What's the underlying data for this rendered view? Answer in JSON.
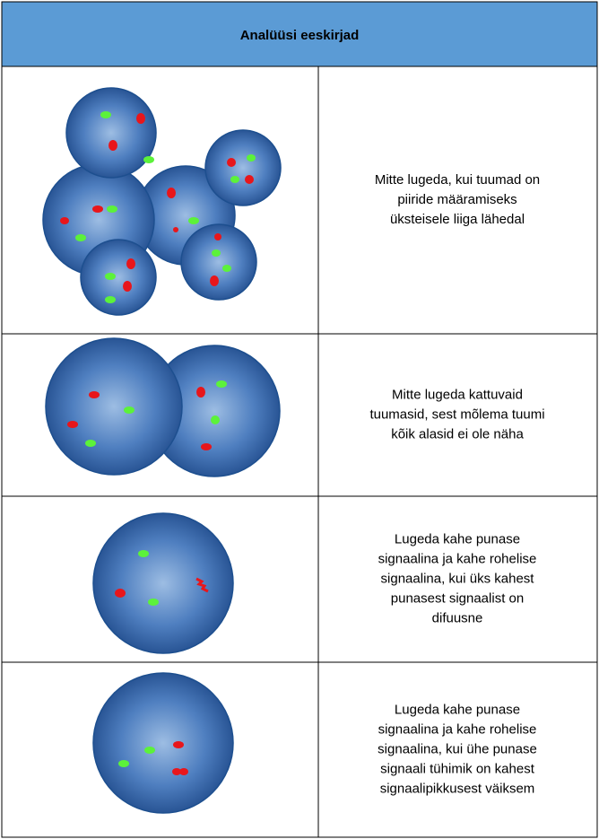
{
  "header": {
    "title": "Analüüsi eeskirjad"
  },
  "rows": [
    {
      "lines": [
        "Mitte lugeda, kui tuumad on",
        "piiride määramiseks",
        "üksteisele liiga lähedal"
      ]
    },
    {
      "lines": [
        "Mitte lugeda kattuvaid",
        "tuumasid, sest mõlema tuumi",
        "kõik alasid ei ole näha"
      ]
    },
    {
      "lines": [
        "Lugeda kahe punase",
        "signaalina ja kahe rohelise",
        "signaalina, kui üks kahest",
        "punasest signaalist on",
        "difuusne"
      ]
    },
    {
      "lines": [
        "Lugeda kahe punase",
        "signaalina ja kahe rohelise",
        "signaalina, kui ühe punase",
        "signaali tühimik on kahest",
        "signaalipikkusest väiksem"
      ]
    }
  ]
}
